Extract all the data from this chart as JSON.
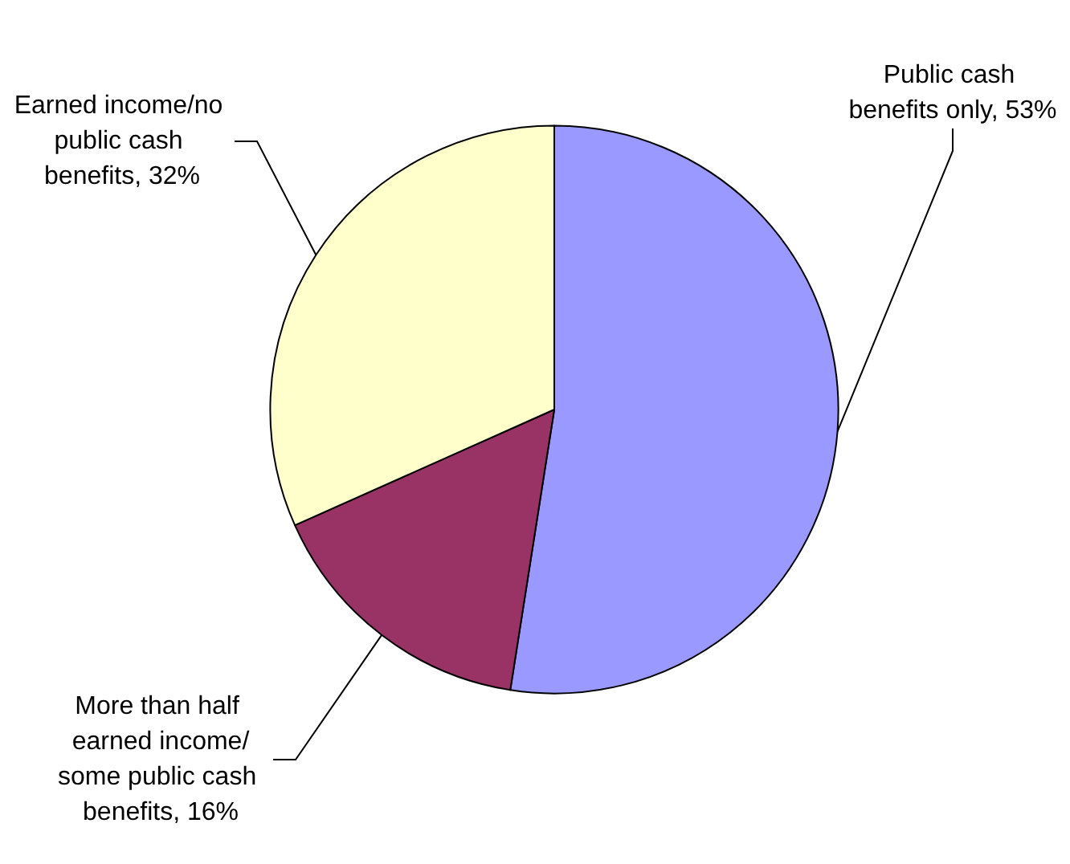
{
  "chart_data": {
    "type": "pie",
    "categories": [
      "Public cash benefits only",
      "More than half earned income/some public cash benefits",
      "Earned income/no public cash benefits"
    ],
    "values": [
      53,
      16,
      32
    ],
    "value_labels": [
      "53%",
      "16%",
      "32%"
    ],
    "colors": [
      "#9999ff",
      "#993366",
      "#ffffcc"
    ],
    "legend": false
  }
}
